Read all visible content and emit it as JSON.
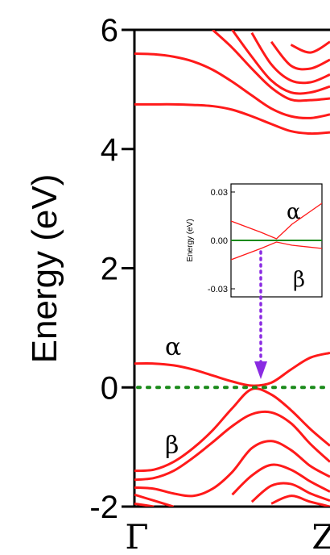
{
  "chart_data": {
    "type": "line",
    "ylabel": "Energy (eV)",
    "ylim": [
      -2,
      6
    ],
    "yticks": [
      "6",
      "4",
      "2",
      "0",
      "-2"
    ],
    "xticks": [
      "Γ",
      "Z"
    ],
    "x": [
      0,
      0.1,
      0.2,
      0.3,
      0.4,
      0.5,
      0.6,
      0.7,
      0.8,
      0.9,
      1.0
    ],
    "fermi_level": 0,
    "band_labels": [
      "α",
      "β"
    ],
    "series": [
      {
        "values": [
          5.6,
          5.59,
          5.55,
          5.47,
          5.33,
          5.13,
          4.9,
          4.68,
          4.55,
          4.52,
          4.58
        ]
      },
      {
        "values": [
          4.75,
          4.75,
          4.75,
          4.74,
          4.72,
          4.66,
          4.55,
          4.42,
          4.3,
          4.26,
          4.28
        ]
      },
      {
        "values": [
          null,
          null,
          null,
          null,
          6.0,
          5.7,
          5.35,
          5.03,
          4.83,
          4.82,
          4.85
        ]
      },
      {
        "values": [
          null,
          null,
          null,
          null,
          null,
          6.0,
          5.55,
          5.15,
          4.95,
          4.95,
          5.05
        ]
      },
      {
        "values": [
          null,
          null,
          null,
          null,
          null,
          null,
          5.95,
          5.42,
          5.15,
          5.12,
          5.25
        ]
      },
      {
        "values": [
          null,
          null,
          null,
          null,
          null,
          null,
          null,
          5.8,
          5.4,
          5.35,
          5.5
        ]
      },
      {
        "values": [
          null,
          null,
          null,
          null,
          null,
          null,
          null,
          null,
          5.75,
          5.62,
          5.8
        ]
      },
      {
        "values": [
          0.4,
          0.4,
          0.37,
          0.3,
          0.2,
          0.1,
          0.03,
          0.08,
          0.3,
          0.5,
          0.58
        ]
      },
      {
        "values": [
          -1.4,
          -1.38,
          -1.25,
          -1.02,
          -0.72,
          -0.35,
          -0.03,
          -0.12,
          -0.38,
          -0.7,
          -0.98
        ]
      },
      {
        "values": [
          -1.55,
          -1.52,
          -1.4,
          -1.18,
          -0.92,
          -0.65,
          -0.45,
          -0.42,
          -0.6,
          -0.95,
          -1.25
        ]
      },
      {
        "values": [
          -1.68,
          -1.7,
          -1.78,
          -1.82,
          -1.7,
          -1.42,
          -1.02,
          -0.9,
          -1.05,
          -1.32,
          -1.5
        ]
      },
      {
        "values": [
          -1.8,
          -1.9,
          -2.0,
          null,
          null,
          -1.8,
          -1.48,
          -1.3,
          -1.38,
          -1.58,
          -1.75
        ]
      },
      {
        "values": [
          -1.95,
          -2.0,
          null,
          null,
          null,
          null,
          -1.92,
          -1.65,
          -1.62,
          -1.78,
          -1.9
        ]
      },
      {
        "values": [
          null,
          null,
          null,
          null,
          null,
          null,
          null,
          -1.95,
          -1.82,
          -1.92,
          -2.0
        ]
      }
    ],
    "inset": {
      "ylabel": "Energy (eV)",
      "ylim": [
        -0.035,
        0.035
      ],
      "yticks": [
        "0.03",
        "0.00",
        "-0.03"
      ],
      "x": [
        0,
        0.33,
        0.5,
        0.67,
        1.0
      ],
      "band_labels": [
        "α",
        "β"
      ],
      "series": [
        {
          "values": [
            0.012,
            0.005,
            0.001,
            0.01,
            0.023
          ]
        },
        {
          "values": [
            -0.012,
            -0.005,
            -0.001,
            -0.003,
            -0.005
          ]
        },
        {
          "values": [
            0.0,
            0.0,
            0.0,
            0.0,
            0.0
          ]
        }
      ]
    }
  }
}
